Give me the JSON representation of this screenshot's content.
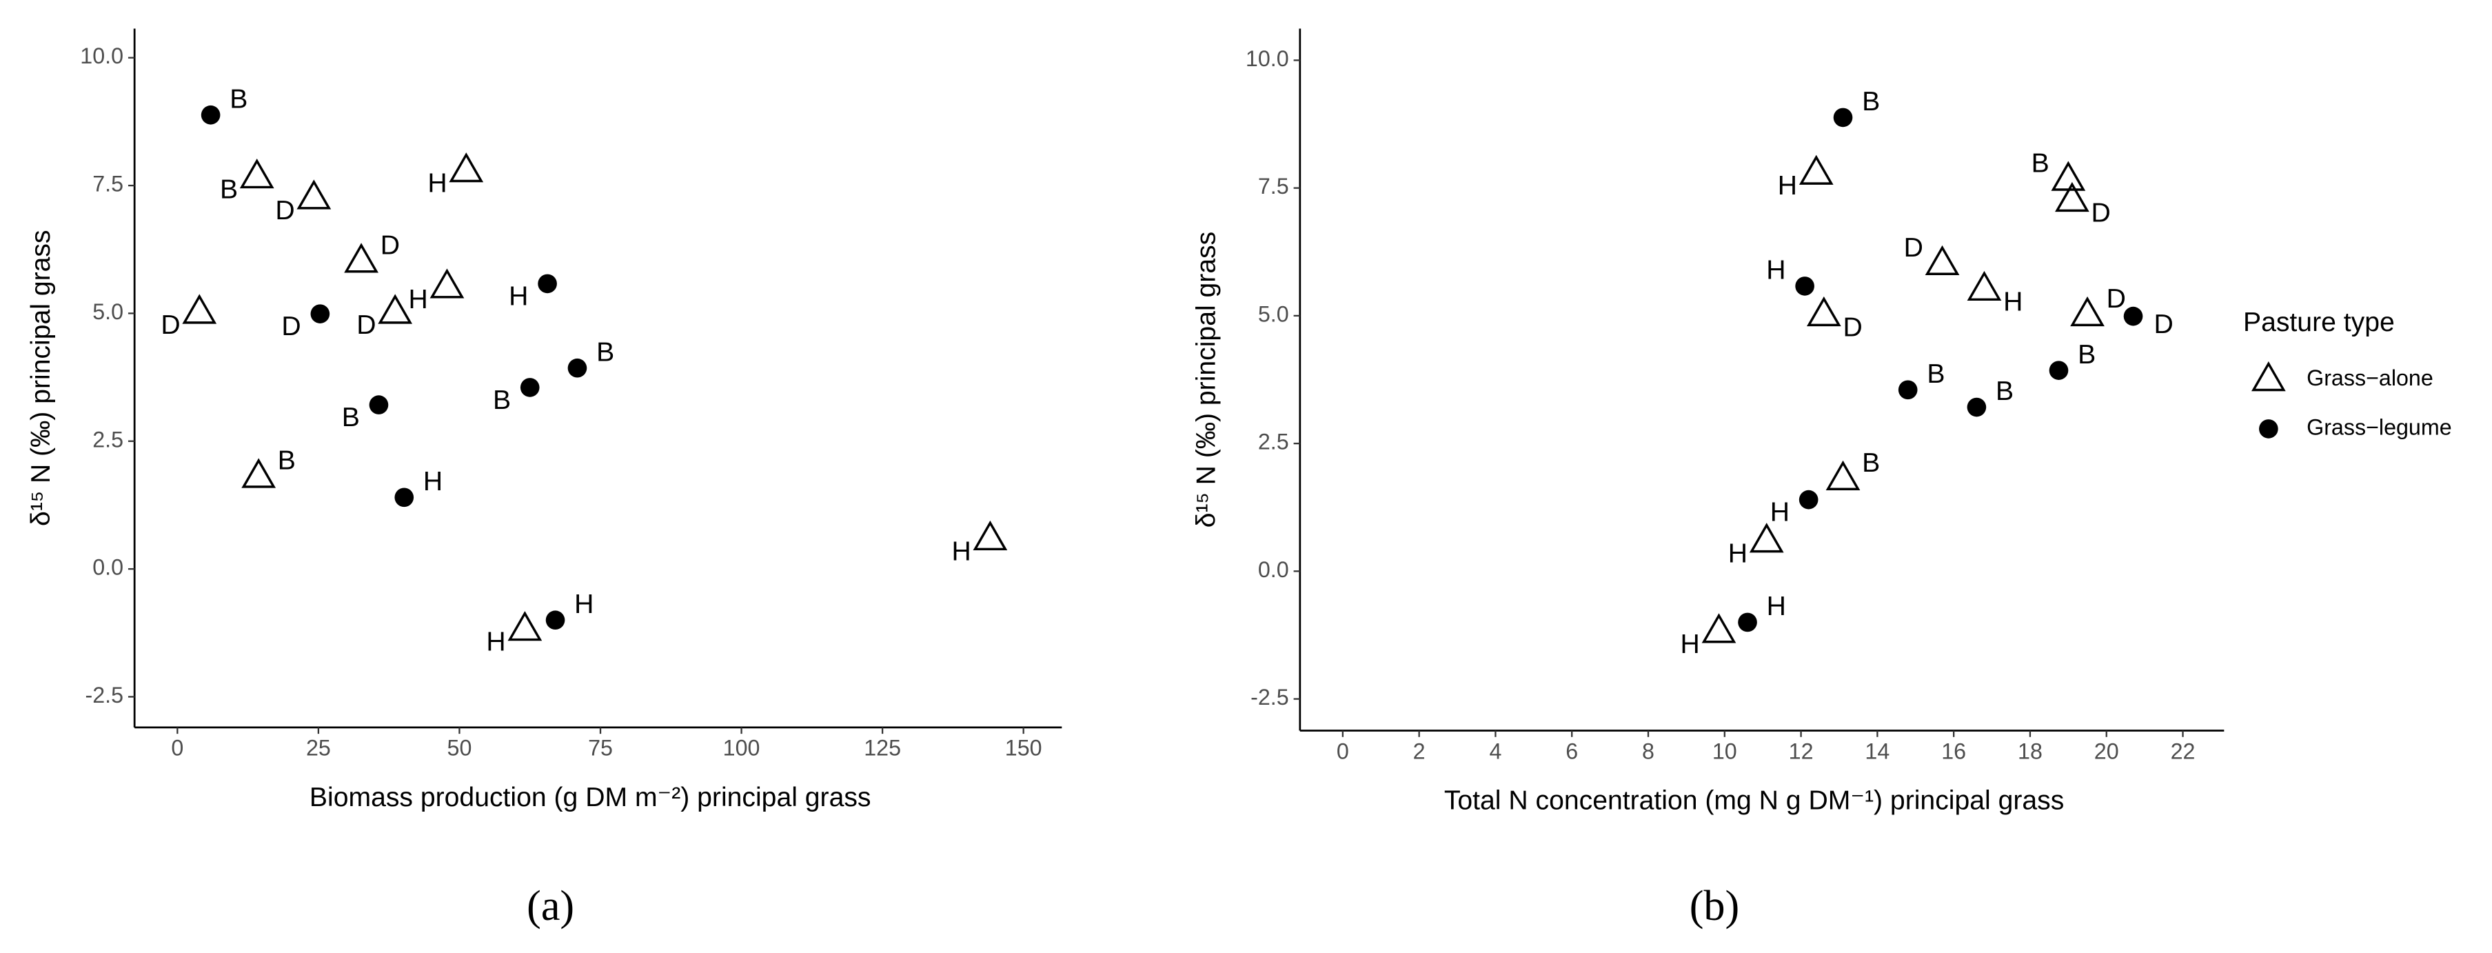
{
  "chart_data": [
    {
      "type": "scatter",
      "caption": "(a)",
      "x_label": "Biomass production (g DM m⁻²) principal grass",
      "y_label": "δ¹⁵ N (‰) principal grass",
      "xlim": [
        -7.6,
        156.8
      ],
      "ylim": [
        -3.1,
        10.57
      ],
      "xticks": [
        0,
        25,
        50,
        75,
        100,
        125,
        150
      ],
      "yticks": [
        {
          "value": -2.5,
          "label": "-2.5"
        },
        {
          "value": 0,
          "label": "0.0"
        },
        {
          "value": 2.5,
          "label": "2.5"
        },
        {
          "value": 5,
          "label": "5.0"
        },
        {
          "value": 7.5,
          "label": "7.5"
        },
        {
          "value": 10,
          "label": "10.0"
        }
      ],
      "series": [
        {
          "marker": "triangle",
          "color": "#000000",
          "x": [
            3.9,
            14.1,
            24.2,
            32.6,
            51.2,
            47.8,
            38.6,
            14.4,
            144.1,
            61.6
          ],
          "values": [
            5.02,
            7.67,
            7.26,
            6.02,
            7.79,
            5.52,
            5.02,
            1.81,
            0.59,
            -1.18
          ],
          "labels": [
            "D",
            "B",
            "D",
            "D",
            "H",
            "H",
            "D",
            "B",
            "H",
            "H"
          ]
        },
        {
          "marker": "circle",
          "color": "#000000",
          "x": [
            5.9,
            25.3,
            35.7,
            40.2,
            65.6,
            62.5,
            70.9,
            67.0
          ],
          "values": [
            8.88,
            4.99,
            3.21,
            1.4,
            5.58,
            3.55,
            3.93,
            -1.0
          ],
          "labels": [
            "B",
            "D",
            "B",
            "H",
            "H",
            "B",
            "B",
            "H"
          ]
        }
      ]
    },
    {
      "type": "scatter",
      "caption": "(b)",
      "x_label": "Total N concentration (mg N g DM⁻¹) principal grass",
      "y_label": "δ¹⁵ N (‰) principal grass",
      "legend_title": "Pasture type",
      "xlim": [
        -1.12,
        23.08
      ],
      "ylim": [
        -3.12,
        10.62
      ],
      "xticks": [
        0,
        2,
        4,
        6,
        8,
        10,
        12,
        14,
        16,
        18,
        20,
        22
      ],
      "yticks": [
        {
          "value": -2.5,
          "label": "-2.5"
        },
        {
          "value": 0,
          "label": "0.0"
        },
        {
          "value": 2.5,
          "label": "2.5"
        },
        {
          "value": 5,
          "label": "5.0"
        },
        {
          "value": 7.5,
          "label": "7.5"
        },
        {
          "value": 10,
          "label": "10.0"
        }
      ],
      "series": [
        {
          "name": "Grass−alone",
          "marker": "triangle",
          "color": "#000000",
          "x": [
            12.6,
            19.0,
            19.1,
            15.7,
            12.4,
            16.8,
            19.5,
            13.1,
            11.1,
            9.85
          ],
          "values": [
            5.02,
            7.67,
            7.26,
            6.02,
            7.79,
            5.52,
            5.02,
            1.81,
            0.59,
            -1.18
          ],
          "labels": [
            "D",
            "B",
            "D",
            "D",
            "H",
            "H",
            "D",
            "B",
            "H",
            "H"
          ]
        },
        {
          "name": "Grass−legume",
          "marker": "circle",
          "color": "#000000",
          "x": [
            13.1,
            20.7,
            16.6,
            12.2,
            12.1,
            14.8,
            18.75,
            10.6
          ],
          "values": [
            8.88,
            4.99,
            3.21,
            1.4,
            5.58,
            3.55,
            3.93,
            -1.0
          ],
          "labels": [
            "B",
            "D",
            "B",
            "H",
            "H",
            "B",
            "B",
            "H"
          ]
        }
      ]
    }
  ]
}
